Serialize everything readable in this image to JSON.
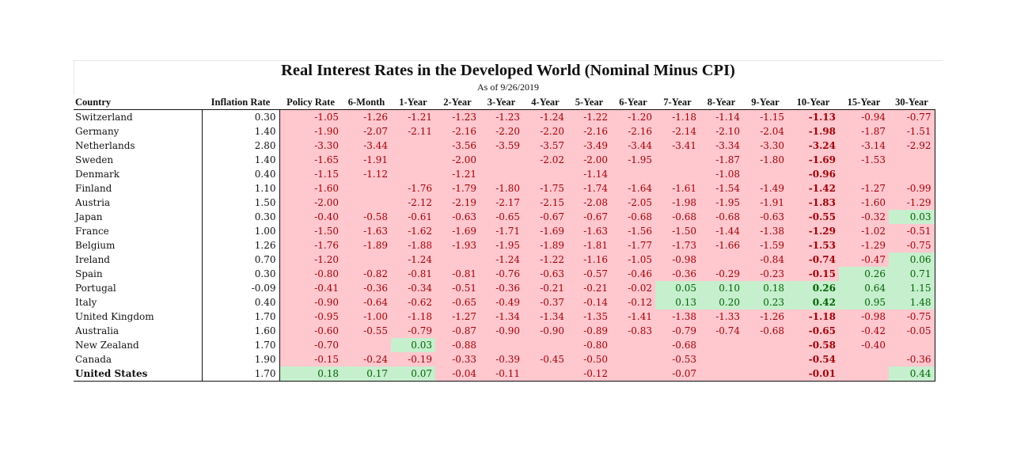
{
  "title": "Real Interest Rates in the Developed World (Nominal Minus CPI)",
  "subtitle": "As of 9/26/2019",
  "headers": [
    "Country",
    "Inflation Rate",
    "Policy Rate",
    "6-Month",
    "1-Year",
    "2-Year",
    "3-Year",
    "4-Year",
    "5-Year",
    "6-Year",
    "7-Year",
    "8-Year",
    "9-Year",
    "10-Year",
    "15-Year",
    "30-Year"
  ],
  "bold_column": "10-Year",
  "colors": {
    "negative_fill": "#ffc7ce",
    "negative_text": "#9c0006",
    "positive_fill": "#c6efce",
    "positive_text": "#006100"
  },
  "rows": [
    {
      "country": "Switzerland",
      "inflation": "0.30",
      "rates": [
        "-1.05",
        "-1.26",
        "-1.21",
        "-1.23",
        "-1.23",
        "-1.24",
        "-1.22",
        "-1.20",
        "-1.18",
        "-1.14",
        "-1.15",
        "-1.13",
        "-0.94",
        "-0.77"
      ]
    },
    {
      "country": "Germany",
      "inflation": "1.40",
      "rates": [
        "-1.90",
        "-2.07",
        "-2.11",
        "-2.16",
        "-2.20",
        "-2.20",
        "-2.16",
        "-2.16",
        "-2.14",
        "-2.10",
        "-2.04",
        "-1.98",
        "-1.87",
        "-1.51"
      ]
    },
    {
      "country": "Netherlands",
      "inflation": "2.80",
      "rates": [
        "-3.30",
        "-3.44",
        "",
        "-3.56",
        "-3.59",
        "-3.57",
        "-3.49",
        "-3.44",
        "-3.41",
        "-3.34",
        "-3.30",
        "-3.24",
        "-3.14",
        "-2.92"
      ]
    },
    {
      "country": "Sweden",
      "inflation": "1.40",
      "rates": [
        "-1.65",
        "-1.91",
        "",
        "-2.00",
        "",
        "-2.02",
        "-2.00",
        "-1.95",
        "",
        "-1.87",
        "-1.80",
        "-1.69",
        "-1.53",
        ""
      ]
    },
    {
      "country": "Denmark",
      "inflation": "0.40",
      "rates": [
        "-1.15",
        "-1.12",
        "",
        "-1.21",
        "",
        "",
        "-1.14",
        "",
        "",
        "-1.08",
        "",
        "-0.96",
        "",
        ""
      ]
    },
    {
      "country": "Finland",
      "inflation": "1.10",
      "rates": [
        "-1.60",
        "",
        "-1.76",
        "-1.79",
        "-1.80",
        "-1.75",
        "-1.74",
        "-1.64",
        "-1.61",
        "-1.54",
        "-1.49",
        "-1.42",
        "-1.27",
        "-0.99"
      ]
    },
    {
      "country": "Austria",
      "inflation": "1.50",
      "rates": [
        "-2.00",
        "",
        "-2.12",
        "-2.19",
        "-2.17",
        "-2.15",
        "-2.08",
        "-2.05",
        "-1.98",
        "-1.95",
        "-1.91",
        "-1.83",
        "-1.60",
        "-1.29"
      ]
    },
    {
      "country": "Japan",
      "inflation": "0.30",
      "rates": [
        "-0.40",
        "-0.58",
        "-0.61",
        "-0.63",
        "-0.65",
        "-0.67",
        "-0.67",
        "-0.68",
        "-0.68",
        "-0.68",
        "-0.63",
        "-0.55",
        "-0.32",
        "0.03"
      ]
    },
    {
      "country": "France",
      "inflation": "1.00",
      "rates": [
        "-1.50",
        "-1.63",
        "-1.62",
        "-1.69",
        "-1.71",
        "-1.69",
        "-1.63",
        "-1.56",
        "-1.50",
        "-1.44",
        "-1.38",
        "-1.29",
        "-1.02",
        "-0.51"
      ]
    },
    {
      "country": "Belgium",
      "inflation": "1.26",
      "rates": [
        "-1.76",
        "-1.89",
        "-1.88",
        "-1.93",
        "-1.95",
        "-1.89",
        "-1.81",
        "-1.77",
        "-1.73",
        "-1.66",
        "-1.59",
        "-1.53",
        "-1.29",
        "-0.75"
      ]
    },
    {
      "country": "Ireland",
      "inflation": "0.70",
      "rates": [
        "-1.20",
        "",
        "-1.24",
        "",
        "-1.24",
        "-1.22",
        "-1.16",
        "-1.05",
        "-0.98",
        "",
        "-0.84",
        "-0.74",
        "-0.47",
        "0.06"
      ]
    },
    {
      "country": "Spain",
      "inflation": "0.30",
      "rates": [
        "-0.80",
        "-0.82",
        "-0.81",
        "-0.81",
        "-0.76",
        "-0.63",
        "-0.57",
        "-0.46",
        "-0.36",
        "-0.29",
        "-0.23",
        "-0.15",
        "0.26",
        "0.71"
      ]
    },
    {
      "country": "Portugal",
      "inflation": "-0.09",
      "rates": [
        "-0.41",
        "-0.36",
        "-0.34",
        "-0.51",
        "-0.36",
        "-0.21",
        "-0.21",
        "-0.02",
        "0.05",
        "0.10",
        "0.18",
        "0.26",
        "0.64",
        "1.15"
      ]
    },
    {
      "country": "Italy",
      "inflation": "0.40",
      "rates": [
        "-0.90",
        "-0.64",
        "-0.62",
        "-0.65",
        "-0.49",
        "-0.37",
        "-0.14",
        "-0.12",
        "0.13",
        "0.20",
        "0.23",
        "0.42",
        "0.95",
        "1.48"
      ]
    },
    {
      "country": "United Kingdom",
      "inflation": "1.70",
      "rates": [
        "-0.95",
        "-1.00",
        "-1.18",
        "-1.27",
        "-1.34",
        "-1.34",
        "-1.35",
        "-1.41",
        "-1.38",
        "-1.33",
        "-1.26",
        "-1.18",
        "-0.98",
        "-0.75"
      ]
    },
    {
      "country": "Australia",
      "inflation": "1.60",
      "rates": [
        "-0.60",
        "-0.55",
        "-0.79",
        "-0.87",
        "-0.90",
        "-0.90",
        "-0.89",
        "-0.83",
        "-0.79",
        "-0.74",
        "-0.68",
        "-0.65",
        "-0.42",
        "-0.05"
      ]
    },
    {
      "country": "New Zealand",
      "inflation": "1.70",
      "rates": [
        "-0.70",
        "",
        "0.03",
        "-0.88",
        "",
        "",
        "-0.80",
        "",
        "-0.68",
        "",
        "",
        "-0.58",
        "-0.40",
        ""
      ]
    },
    {
      "country": "Canada",
      "inflation": "1.90",
      "rates": [
        "-0.15",
        "-0.24",
        "-0.19",
        "-0.33",
        "-0.39",
        "-0.45",
        "-0.50",
        "",
        "-0.53",
        "",
        "",
        "-0.54",
        "",
        "-0.36"
      ]
    },
    {
      "country": "United States",
      "inflation": "1.70",
      "rates": [
        "0.18",
        "0.17",
        "0.07",
        "-0.04",
        "-0.11",
        "",
        "-0.12",
        "",
        "-0.07",
        "",
        "",
        "-0.01",
        "",
        "0.44"
      ]
    }
  ]
}
